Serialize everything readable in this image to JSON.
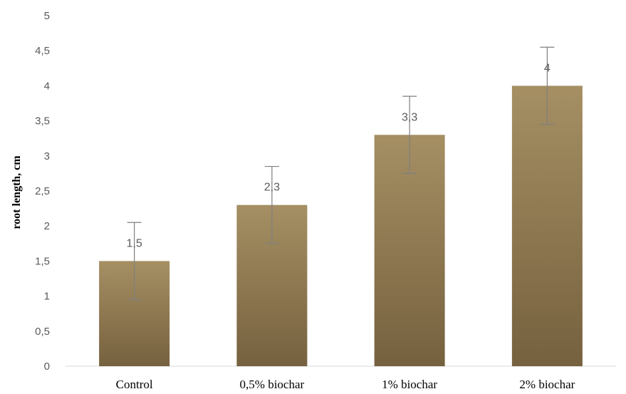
{
  "chart_data": {
    "type": "bar",
    "categories": [
      "Control",
      "0,5% biochar",
      "1% biochar",
      "2% biochar"
    ],
    "values": [
      1.5,
      2.3,
      3.3,
      4
    ],
    "value_labels": [
      "1,5",
      "2,3",
      "3,3",
      "4"
    ],
    "error": [
      0.55,
      0.55,
      0.55,
      0.55
    ],
    "ylabel": "root length, cm",
    "ylim": [
      0,
      5
    ],
    "yticks": [
      0,
      0.5,
      1,
      1.5,
      2,
      2.5,
      3,
      3.5,
      4,
      4.5,
      5
    ],
    "ytick_labels": [
      "0",
      "0,5",
      "1",
      "1,5",
      "2",
      "2,5",
      "3",
      "3,5",
      "4",
      "4,5",
      "5"
    ],
    "grid": false,
    "colors": {
      "bar_top": "#a58f63",
      "bar_bottom": "#76613f",
      "error_bar": "#7f7f7f",
      "axis": "#d9d9d9"
    }
  }
}
